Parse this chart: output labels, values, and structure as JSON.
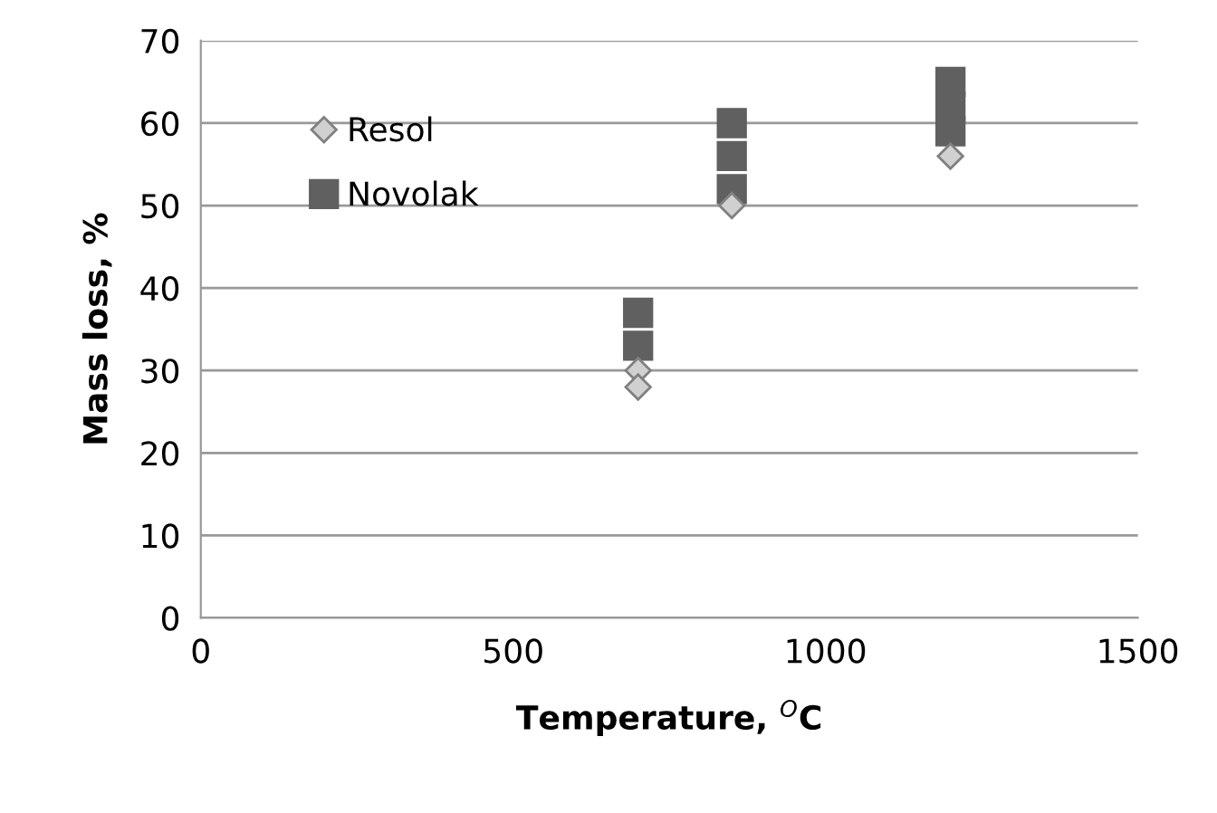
{
  "chart_data": {
    "type": "scatter",
    "xlabel": "Temperature, $^{O}$C",
    "ylabel": "Mass loss, %",
    "xlim": [
      0,
      1500
    ],
    "xticks": [
      0,
      500,
      1000,
      1500
    ],
    "ylim": [
      0,
      70
    ],
    "yticks": [
      0,
      10,
      20,
      30,
      40,
      50,
      60,
      70
    ],
    "grid": "y",
    "legend": "top left",
    "series": [
      {
        "name": "Novolak",
        "color": "#606060",
        "marker": "square",
        "x": [
          700,
          700,
          850,
          850,
          850,
          1200,
          1200,
          1200
        ],
        "values": [
          33,
          37,
          52,
          56,
          60,
          59,
          62,
          65
        ]
      },
      {
        "name": "Resol",
        "color": "#d0d0d0",
        "marker": "diamond",
        "x": [
          700,
          700,
          850,
          1200
        ],
        "values": [
          30,
          28,
          50,
          56
        ]
      }
    ]
  }
}
